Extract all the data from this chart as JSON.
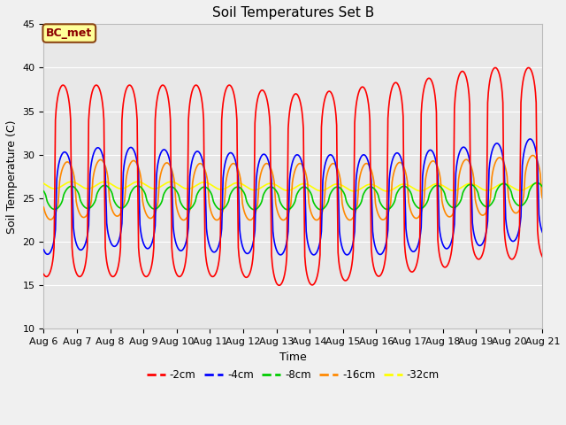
{
  "title": "Soil Temperatures Set B",
  "xlabel": "Time",
  "ylabel": "Soil Temperature (C)",
  "ylim": [
    10,
    45
  ],
  "xlim": [
    0,
    360
  ],
  "annotation": "BC_met",
  "x_tick_labels": [
    "Aug 6",
    "Aug 7",
    "Aug 8",
    "Aug 9",
    "Aug 10",
    "Aug 11",
    "Aug 12",
    "Aug 13",
    "Aug 14",
    "Aug 15",
    "Aug 16",
    "Aug 17",
    "Aug 18",
    "Aug 19",
    "Aug 20",
    "Aug 21"
  ],
  "x_tick_positions": [
    0,
    24,
    48,
    72,
    96,
    120,
    144,
    168,
    192,
    216,
    240,
    264,
    288,
    312,
    336,
    360
  ],
  "series_colors": {
    "-2cm": "#ff0000",
    "-4cm": "#0000ff",
    "-8cm": "#00cc00",
    "-16cm": "#ff8800",
    "-32cm": "#ffff00"
  },
  "background_color": "#e8e8e8",
  "fig_background": "#f0f0f0",
  "grid_color": "#ffffff",
  "title_fontsize": 11,
  "legend_colors": [
    "#ff0000",
    "#0000ff",
    "#00cc00",
    "#ff8800",
    "#ffff00"
  ],
  "legend_labels": [
    "-2cm",
    "-4cm",
    "-8cm",
    "-16cm",
    "-32cm"
  ],
  "annotation_text_color": "#8B0000",
  "annotation_bg": "#ffff99",
  "annotation_edge": "#8B4513"
}
